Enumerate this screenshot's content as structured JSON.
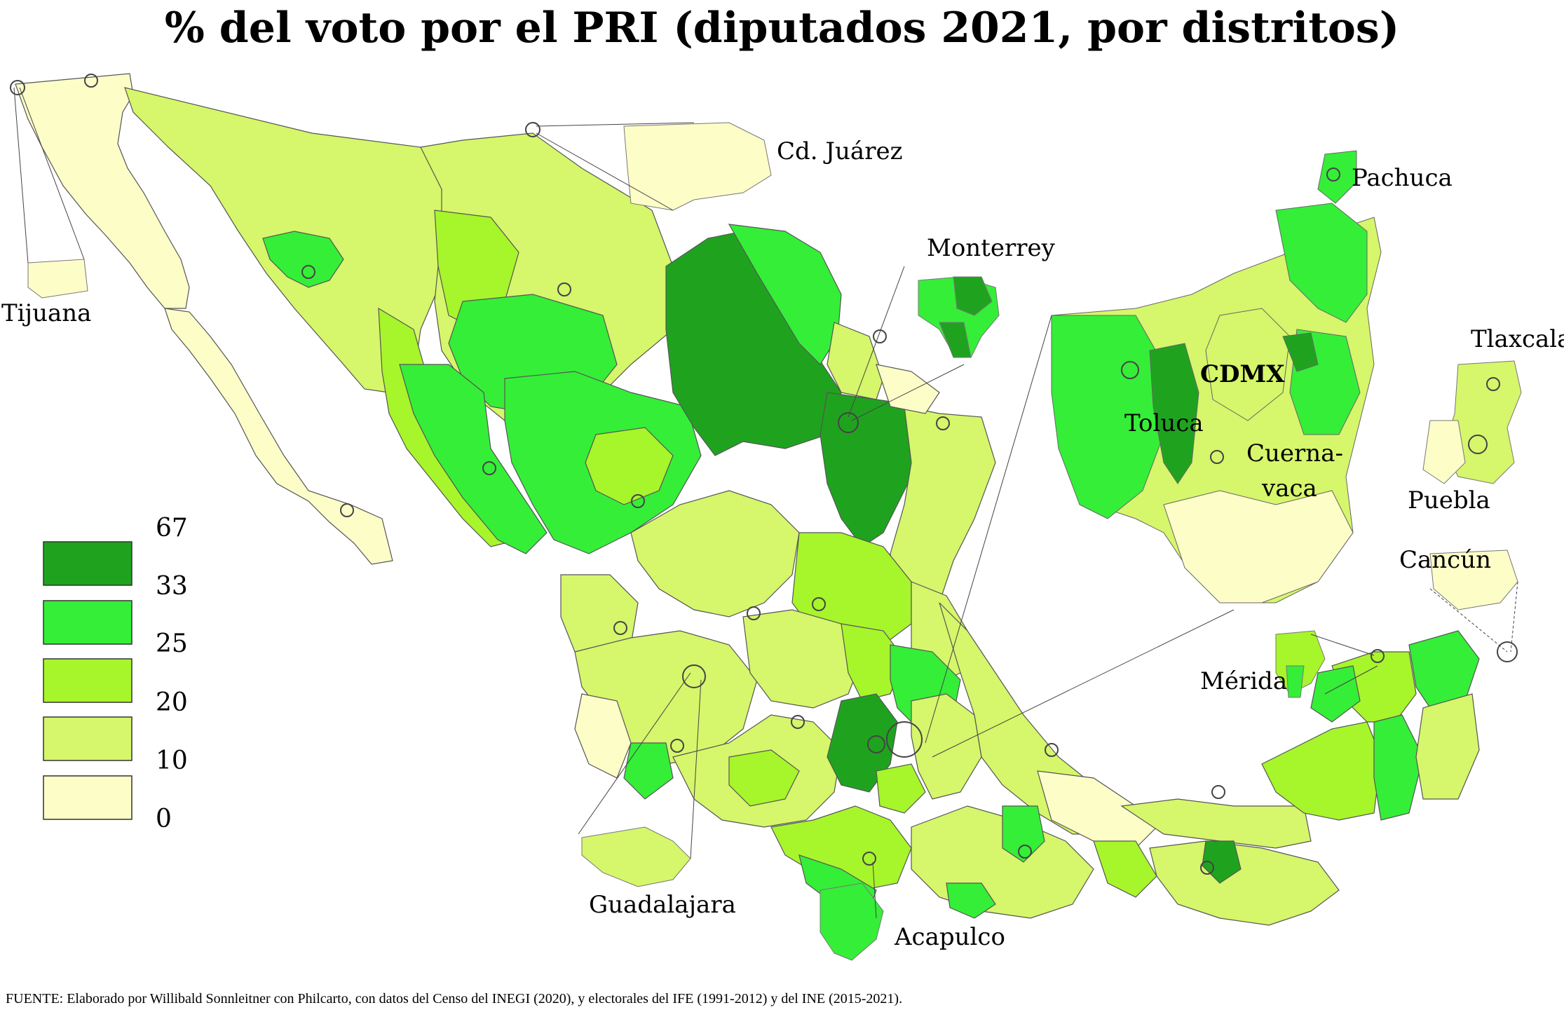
{
  "title": "% del voto por el PRI (diputados 2021, por distritos)",
  "legend": {
    "breaks": [
      "67",
      "33",
      "25",
      "20",
      "10",
      "0"
    ],
    "colors": [
      "#1fa31f",
      "#35ee38",
      "#a7f52b",
      "#d6f66b",
      "#fdfdc8"
    ]
  },
  "labels": {
    "tijuana": "Tijuana",
    "cd_juarez": "Cd. Juárez",
    "monterrey": "Monterrey",
    "pachuca": "Pachuca",
    "tlaxcala": "Tlaxcala",
    "cdmx": "CDMX",
    "toluca": "Toluca",
    "cuernavaca_1": "Cuerna-",
    "cuernavaca_2": "vaca",
    "puebla": "Puebla",
    "cancun": "Cancún",
    "merida": "Mérida",
    "guadalajara": "Guadalajara",
    "acapulco": "Acapulco"
  },
  "source": "FUENTE: Elaborado por Willibald Sonnleitner con Philcarto, con datos del Censo del INEGI (2020), y electorales del IFE (1991-2012) y del INE (2015-2021)."
}
